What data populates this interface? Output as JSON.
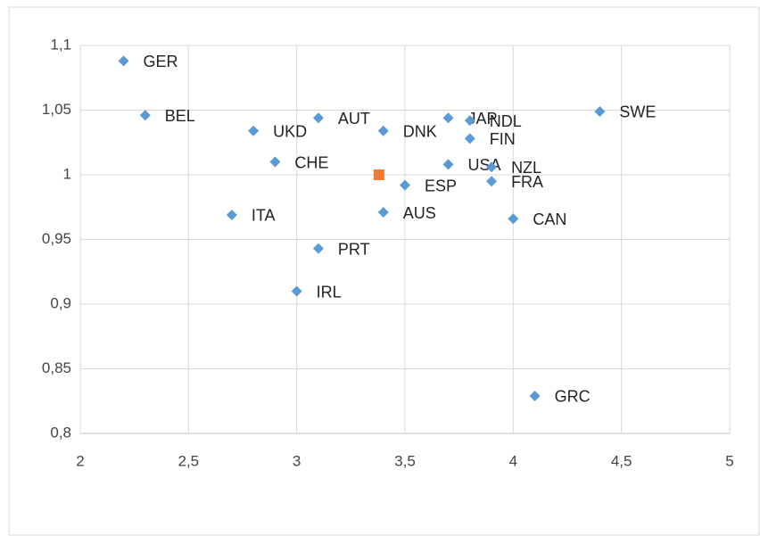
{
  "chart_data": {
    "type": "scatter",
    "xlim": [
      2,
      5
    ],
    "xticks": [
      2,
      {
        "value": 2.5,
        "label": "2,5"
      },
      3,
      {
        "value": 3.5,
        "label": "3,5"
      },
      4,
      {
        "value": 4.5,
        "label": "4,5"
      },
      5
    ],
    "ylim": [
      0.8,
      1.1
    ],
    "yticks": [
      {
        "value": 0.8,
        "label": "0,8"
      },
      {
        "value": 0.85,
        "label": "0,85"
      },
      {
        "value": 0.9,
        "label": "0,9"
      },
      {
        "value": 0.95,
        "label": "0,95"
      },
      1,
      {
        "value": 1.05,
        "label": "1,05"
      },
      {
        "value": 1.1,
        "label": "1,1"
      }
    ],
    "grid": true,
    "series": [
      {
        "color": "#5b9bd5",
        "marker": "diamond",
        "labels": [
          "GER",
          "BEL",
          "UKD",
          "CHE",
          "ITA",
          "AUT",
          "PRT",
          "IRL",
          "DNK",
          "AUS",
          "ESP",
          "USA",
          "JAP",
          "NDL",
          "FIN",
          "NZL",
          "FRA",
          "CAN",
          "GRC",
          "SWE"
        ],
        "x": [
          2.2,
          2.3,
          2.8,
          2.9,
          2.7,
          3.1,
          3.1,
          3.0,
          3.4,
          3.4,
          3.5,
          3.7,
          3.7,
          3.8,
          3.8,
          3.9,
          3.9,
          4.0,
          4.1,
          4.4
        ],
        "values": [
          1.088,
          1.046,
          1.034,
          1.01,
          0.969,
          1.044,
          0.943,
          0.91,
          1.034,
          0.971,
          0.992,
          1.008,
          1.044,
          1.042,
          1.028,
          1.006,
          0.995,
          0.966,
          0.829,
          1.049
        ]
      },
      {
        "color": "#ed7d31",
        "marker": "square",
        "x": [
          3.38
        ],
        "values": [
          1.0
        ]
      }
    ]
  }
}
